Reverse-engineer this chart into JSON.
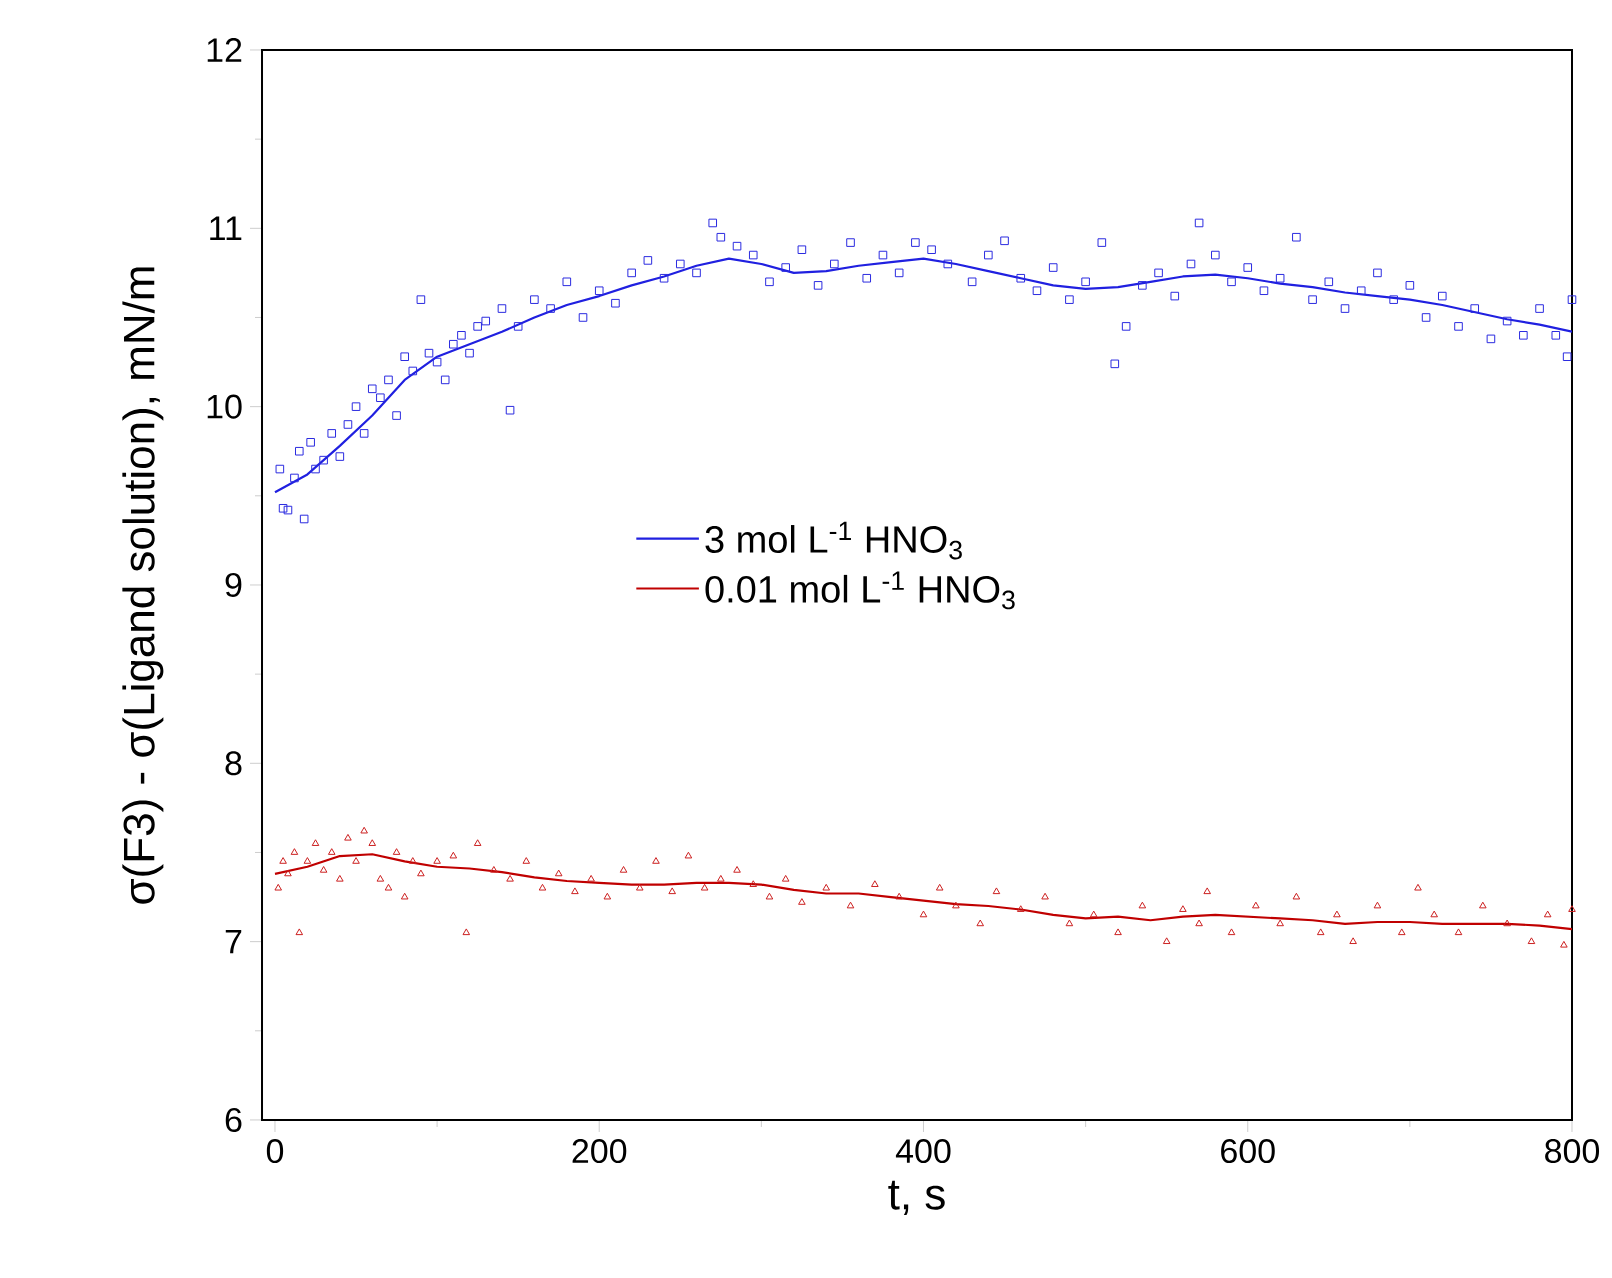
{
  "chart_data": {
    "type": "line",
    "xlabel": "t, s",
    "ylabel": "σ(F3) - σ(Ligand solution), mN/m",
    "xlim": [
      -8,
      800
    ],
    "ylim": [
      6,
      12
    ],
    "xticks": [
      0,
      {
        "value": 100,
        "label": null
      },
      200,
      {
        "value": 300,
        "label": null
      },
      400,
      {
        "value": 500,
        "label": null
      },
      600,
      {
        "value": 700,
        "label": null
      },
      800
    ],
    "yticks": [
      6,
      {
        "value": 6.5,
        "label": null
      },
      7,
      {
        "value": 7.5,
        "label": null
      },
      8,
      {
        "value": 8.5,
        "label": null
      },
      9,
      {
        "value": 9.5,
        "label": null
      },
      10,
      {
        "value": 10.5,
        "label": null
      },
      11,
      {
        "value": 11.5,
        "label": null
      },
      12
    ],
    "legend": "center",
    "series": [
      {
        "type": "scatter",
        "marker": "square",
        "color": "#2a2ae0",
        "x": [
          3,
          5,
          8,
          12,
          15,
          18,
          22,
          25,
          30,
          35,
          40,
          45,
          50,
          55,
          60,
          65,
          70,
          75,
          80,
          85,
          90,
          95,
          100,
          105,
          110,
          115,
          120,
          125,
          130,
          140,
          145,
          150,
          160,
          170,
          180,
          190,
          200,
          210,
          220,
          230,
          240,
          250,
          260,
          270,
          275,
          285,
          295,
          305,
          315,
          325,
          335,
          345,
          355,
          365,
          375,
          385,
          395,
          405,
          415,
          430,
          440,
          450,
          460,
          470,
          480,
          490,
          500,
          510,
          518,
          525,
          535,
          545,
          555,
          565,
          570,
          580,
          590,
          600,
          610,
          620,
          630,
          640,
          650,
          660,
          670,
          680,
          690,
          700,
          710,
          720,
          730,
          740,
          750,
          760,
          770,
          780,
          790,
          797,
          800
        ],
        "values": [
          9.65,
          9.43,
          9.42,
          9.6,
          9.75,
          9.37,
          9.8,
          9.65,
          9.7,
          9.85,
          9.72,
          9.9,
          10.0,
          9.85,
          10.1,
          10.05,
          10.15,
          9.95,
          10.28,
          10.2,
          10.6,
          10.3,
          10.25,
          10.15,
          10.35,
          10.4,
          10.3,
          10.45,
          10.48,
          10.55,
          9.98,
          10.45,
          10.6,
          10.55,
          10.7,
          10.5,
          10.65,
          10.58,
          10.75,
          10.82,
          10.72,
          10.8,
          10.75,
          11.03,
          10.95,
          10.9,
          10.85,
          10.7,
          10.78,
          10.88,
          10.68,
          10.8,
          10.92,
          10.72,
          10.85,
          10.75,
          10.92,
          10.88,
          10.8,
          10.7,
          10.85,
          10.93,
          10.72,
          10.65,
          10.78,
          10.6,
          10.7,
          10.92,
          10.24,
          10.45,
          10.68,
          10.75,
          10.62,
          10.8,
          11.03,
          10.85,
          10.7,
          10.78,
          10.65,
          10.72,
          10.95,
          10.6,
          10.7,
          10.55,
          10.65,
          10.75,
          10.6,
          10.68,
          10.5,
          10.62,
          10.45,
          10.55,
          10.38,
          10.48,
          10.4,
          10.55,
          10.4,
          10.28,
          10.6
        ]
      },
      {
        "name": "3 mol L$^{-1}$ HNO$_{3}$",
        "color": "#2020e0",
        "x": [
          0,
          20,
          40,
          60,
          80,
          100,
          120,
          140,
          160,
          180,
          200,
          220,
          240,
          260,
          280,
          300,
          320,
          340,
          360,
          380,
          400,
          420,
          440,
          460,
          480,
          500,
          520,
          540,
          560,
          580,
          600,
          620,
          640,
          660,
          680,
          700,
          720,
          740,
          760,
          780,
          800
        ],
        "values": [
          9.52,
          9.62,
          9.78,
          9.95,
          10.15,
          10.28,
          10.35,
          10.42,
          10.5,
          10.57,
          10.62,
          10.68,
          10.73,
          10.79,
          10.83,
          10.8,
          10.75,
          10.76,
          10.79,
          10.81,
          10.83,
          10.8,
          10.76,
          10.72,
          10.68,
          10.66,
          10.67,
          10.7,
          10.73,
          10.74,
          10.72,
          10.69,
          10.67,
          10.64,
          10.62,
          10.6,
          10.57,
          10.53,
          10.49,
          10.46,
          10.42
        ]
      },
      {
        "type": "scatter",
        "marker": "triangle",
        "color": "#cc2020",
        "x": [
          2,
          5,
          8,
          12,
          15,
          20,
          25,
          30,
          35,
          40,
          45,
          50,
          55,
          60,
          65,
          70,
          75,
          80,
          85,
          90,
          100,
          110,
          118,
          125,
          135,
          145,
          155,
          165,
          175,
          185,
          195,
          205,
          215,
          225,
          235,
          245,
          255,
          265,
          275,
          285,
          295,
          305,
          315,
          325,
          340,
          355,
          370,
          385,
          400,
          410,
          420,
          435,
          445,
          460,
          475,
          490,
          505,
          520,
          535,
          550,
          560,
          570,
          575,
          590,
          605,
          620,
          630,
          645,
          655,
          665,
          680,
          695,
          705,
          715,
          730,
          745,
          760,
          775,
          785,
          795,
          800
        ],
        "values": [
          7.3,
          7.45,
          7.38,
          7.5,
          7.05,
          7.45,
          7.55,
          7.4,
          7.5,
          7.35,
          7.58,
          7.45,
          7.62,
          7.55,
          7.35,
          7.3,
          7.5,
          7.25,
          7.45,
          7.38,
          7.45,
          7.48,
          7.05,
          7.55,
          7.4,
          7.35,
          7.45,
          7.3,
          7.38,
          7.28,
          7.35,
          7.25,
          7.4,
          7.3,
          7.45,
          7.28,
          7.48,
          7.3,
          7.35,
          7.4,
          7.32,
          7.25,
          7.35,
          7.22,
          7.3,
          7.2,
          7.32,
          7.25,
          7.15,
          7.3,
          7.2,
          7.1,
          7.28,
          7.18,
          7.25,
          7.1,
          7.15,
          7.05,
          7.2,
          7.0,
          7.18,
          7.1,
          7.28,
          7.05,
          7.2,
          7.1,
          7.25,
          7.05,
          7.15,
          7.0,
          7.2,
          7.05,
          7.3,
          7.15,
          7.05,
          7.2,
          7.1,
          7.0,
          7.15,
          6.98,
          7.18
        ]
      },
      {
        "name": "0.01 mol L$^{-1}$ HNO$_{3}$",
        "color": "#c00000",
        "x": [
          0,
          20,
          40,
          60,
          80,
          100,
          120,
          140,
          160,
          180,
          200,
          220,
          240,
          260,
          280,
          300,
          320,
          340,
          360,
          380,
          400,
          420,
          440,
          460,
          480,
          500,
          520,
          540,
          560,
          580,
          600,
          620,
          640,
          660,
          680,
          700,
          720,
          740,
          760,
          780,
          800
        ],
        "values": [
          7.38,
          7.42,
          7.48,
          7.49,
          7.45,
          7.42,
          7.41,
          7.39,
          7.36,
          7.34,
          7.33,
          7.32,
          7.32,
          7.33,
          7.33,
          7.32,
          7.29,
          7.27,
          7.27,
          7.25,
          7.23,
          7.21,
          7.2,
          7.18,
          7.15,
          7.13,
          7.14,
          7.12,
          7.14,
          7.15,
          7.14,
          7.13,
          7.12,
          7.1,
          7.11,
          7.11,
          7.1,
          7.1,
          7.1,
          7.09,
          7.07
        ]
      }
    ]
  }
}
